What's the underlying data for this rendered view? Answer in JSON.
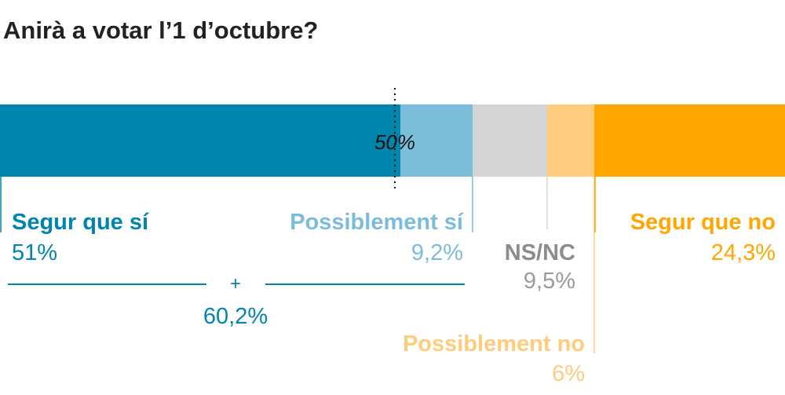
{
  "title": "Anirà a votar l’1 d’octubre?",
  "chart_data": {
    "type": "bar",
    "orientation": "horizontal-stacked-100",
    "title": "Anirà a votar l’1 d’octubre?",
    "unit": "%",
    "xlim": [
      0,
      100
    ],
    "reference_line": {
      "value": 50,
      "label": "50%"
    },
    "series": [
      {
        "name": "Segur que sí",
        "value": 51,
        "display": "51%",
        "color": "#0085AD"
      },
      {
        "name": "Possiblement sí",
        "value": 9.2,
        "display": "9,2%",
        "color": "#7BBCD8"
      },
      {
        "name": "NS/NC",
        "value": 9.5,
        "display": "9,5%",
        "color": "#D4D4D4"
      },
      {
        "name": "Possiblement no",
        "value": 6,
        "display": "6%",
        "color": "#FFCB7D"
      },
      {
        "name": "Segur que no",
        "value": 24.3,
        "display": "24,3%",
        "color": "#FFA700"
      }
    ],
    "sum": {
      "operator": "+",
      "label": "60,2%",
      "value": 60.2,
      "color": "#0085AD"
    }
  },
  "colors": {
    "value_grey": "#9A9A9A",
    "label_grey": "#8C8C8C"
  }
}
